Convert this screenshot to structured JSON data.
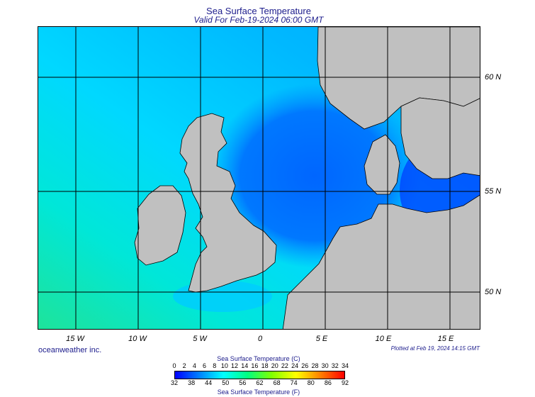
{
  "title": "Sea Surface Temperature",
  "subtitle": "Valid For Feb-19-2024 06:00 GMT",
  "credit": "oceanweather inc.",
  "plotted": "Plotted at Feb 19, 2024 14:15 GMT",
  "map": {
    "lon_range": [
      -18.0,
      17.5
    ],
    "lat_range": [
      48.0,
      62.5
    ],
    "lon_ticks": [
      {
        "lon": -15,
        "label": "15 W"
      },
      {
        "lon": -10,
        "label": "10 W"
      },
      {
        "lon": -5,
        "label": "5 W"
      },
      {
        "lon": 0,
        "label": "0"
      },
      {
        "lon": 5,
        "label": "5 E"
      },
      {
        "lon": 10,
        "label": "10 E"
      },
      {
        "lon": 15,
        "label": "15 E"
      }
    ],
    "lat_ticks": [
      {
        "lat": 60,
        "label": "60 N"
      },
      {
        "lat": 55,
        "label": "55 N"
      },
      {
        "lat": 50,
        "label": "50 N"
      }
    ],
    "land_color": "#c0c0c0",
    "coast_color": "#000000",
    "grid_color": "#000000"
  },
  "legend": {
    "label_c": "Sea Surface Temperature (C)",
    "label_f": "Sea Surface Temperature (F)",
    "ticks_c": [
      "0",
      "2",
      "4",
      "6",
      "8",
      "10",
      "12",
      "14",
      "16",
      "18",
      "20",
      "22",
      "24",
      "26",
      "28",
      "30",
      "32",
      "34"
    ],
    "ticks_f": [
      "32",
      "38",
      "44",
      "50",
      "56",
      "62",
      "68",
      "74",
      "80",
      "86",
      "92"
    ],
    "colors": [
      "#0000ff",
      "#0040ff",
      "#0080ff",
      "#00c0ff",
      "#00ffff",
      "#00ffc0",
      "#00ff80",
      "#40ff40",
      "#80ff00",
      "#c0ff00",
      "#ffff00",
      "#ffc000",
      "#ff8000",
      "#ff4000",
      "#ff0000"
    ]
  }
}
